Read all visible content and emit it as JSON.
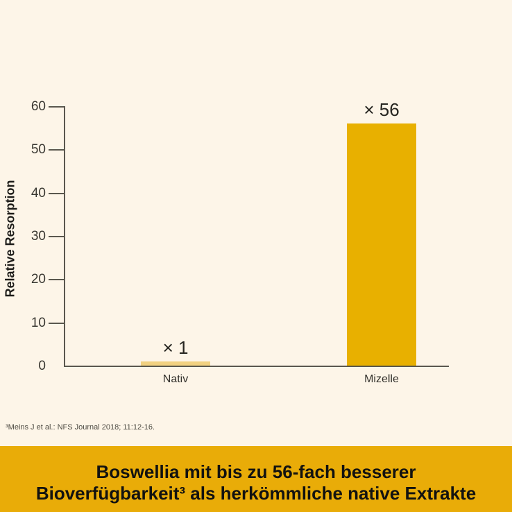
{
  "page": {
    "background": "#FDF5E8"
  },
  "chart_data": {
    "type": "bar",
    "categories": [
      "Nativ",
      "Mizelle"
    ],
    "values": [
      1,
      56
    ],
    "bar_labels": [
      "× 1",
      "× 56"
    ],
    "bar_colors": [
      "#F1D181",
      "#E8B000"
    ],
    "title": "",
    "xlabel": "",
    "ylabel": "Relative Resorption",
    "yticks": [
      0,
      10,
      20,
      30,
      40,
      50,
      60
    ],
    "ylim": [
      0,
      60
    ],
    "grid": false,
    "legend": false,
    "axis_color": "#5a574e"
  },
  "footnote": {
    "text": "³Meins J et al.: NFS Journal 2018; 11:12-16."
  },
  "banner": {
    "line1": "Boswellia mit bis zu 56-fach besserer",
    "line2": "Bioverfügbarkeit³ als herkömmliche native Extrakte",
    "background": "#E9AC08",
    "text_color": "#121210"
  }
}
